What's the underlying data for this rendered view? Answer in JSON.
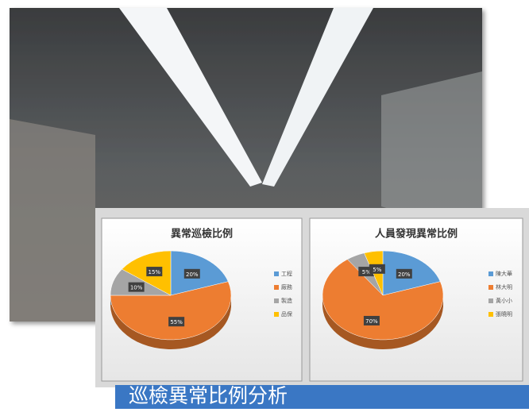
{
  "chart_data": [
    {
      "type": "pie",
      "title": "異常巡檢比例",
      "categories": [
        "工程",
        "廠務",
        "製造",
        "品保"
      ],
      "values": [
        20,
        55,
        10,
        15
      ],
      "value_labels": [
        "20%",
        "55%",
        "10%",
        "15%"
      ],
      "colors": [
        "#5b9bd5",
        "#ed7d31",
        "#a5a5a5",
        "#ffc000"
      ]
    },
    {
      "type": "pie",
      "title": "人員發現異常比例",
      "categories": [
        "陳大華",
        "林大明",
        "黃小小",
        "張曉明"
      ],
      "values": [
        20,
        70,
        5,
        5
      ],
      "value_labels": [
        "20%",
        "70%",
        "5%",
        "5%"
      ],
      "colors": [
        "#5b9bd5",
        "#ed7d31",
        "#a5a5a5",
        "#ffc000"
      ]
    }
  ],
  "caption": "巡檢異常比例分析"
}
